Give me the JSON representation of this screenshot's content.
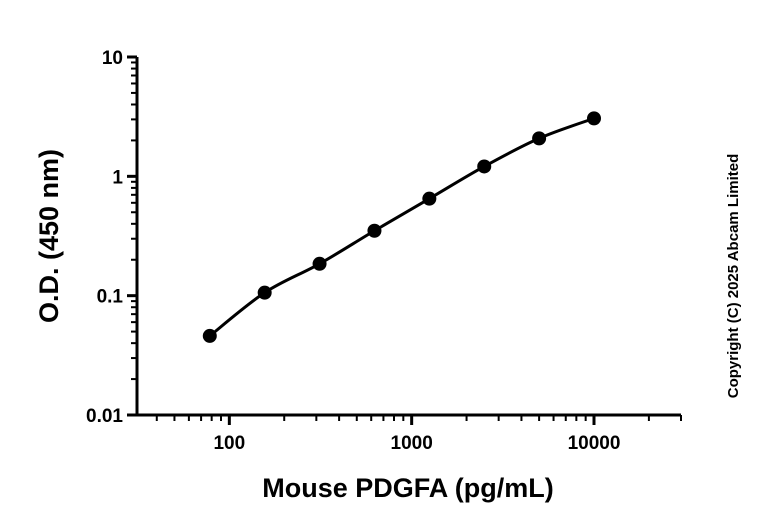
{
  "chart_data": {
    "type": "scatter",
    "title": "",
    "xlabel": "Mouse PDGFA (pg/mL)",
    "ylabel": "O.D. (450 nm)",
    "xscale": "log",
    "yscale": "log",
    "xlim": [
      30,
      30000
    ],
    "ylim": [
      0.01,
      10
    ],
    "xticks": [
      "100",
      "1000",
      "10000"
    ],
    "yticks": [
      "0.01",
      "0.1",
      "1",
      "10"
    ],
    "grid": false,
    "fit_line": true,
    "marker_color": "#000000",
    "line_color": "#000000",
    "x": [
      78.125,
      156.25,
      312.5,
      625,
      1250,
      2500,
      5000,
      10000
    ],
    "y": [
      0.046,
      0.106,
      0.185,
      0.35,
      0.65,
      1.21,
      2.08,
      3.06
    ]
  },
  "copyright": "Copyright (C) 2025 Abcam Limited"
}
